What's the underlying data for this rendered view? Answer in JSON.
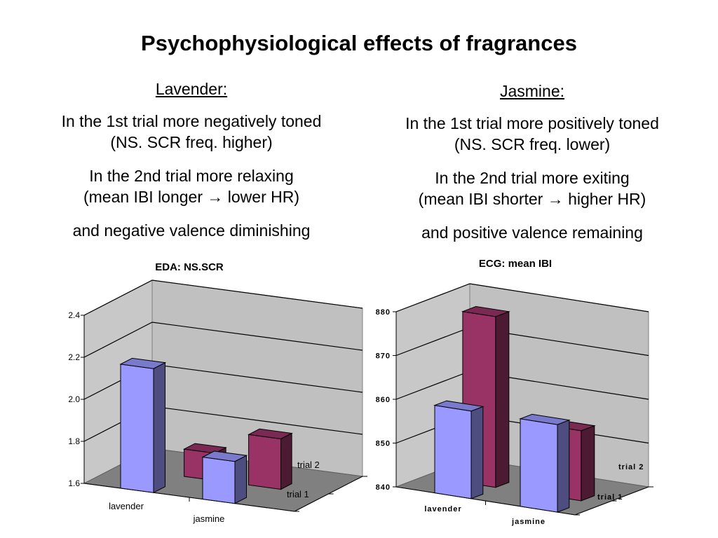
{
  "title": "Psychophysiological effects of fragrances",
  "left": {
    "heading": "Lavender:",
    "line1a": "In the 1st trial more negatively toned",
    "line1b": "(NS. SCR freq. higher)",
    "line2a": "In the 2nd trial more relaxing",
    "line2b": "(mean IBI longer → lower HR)",
    "line3": "and negative valence diminishing"
  },
  "right": {
    "heading": "Jasmine:",
    "line1a": "In the 1st trial more positively toned",
    "line1b": "(NS. SCR freq. lower)",
    "line2a": "In the 2nd trial more exiting",
    "line2b": "(mean IBI shorter → higher HR)",
    "line3": "and positive valence remaining"
  },
  "chart_data": [
    {
      "type": "bar",
      "title": "EDA: NS.SCR",
      "categories": [
        "lavender",
        "jasmine"
      ],
      "series": [
        {
          "name": "trial 1",
          "values": [
            2.19,
            1.8
          ],
          "color": "#9999ff"
        },
        {
          "name": "trial 2",
          "values": [
            1.73,
            1.84
          ],
          "color": "#993366"
        }
      ],
      "yticks": [
        "1.6",
        "1.8",
        "2.0",
        "2.2",
        "2.4"
      ],
      "ylim": [
        1.6,
        2.4
      ],
      "grid": true
    },
    {
      "type": "bar",
      "title": "ECG: mean IBI",
      "categories": [
        "lavender",
        "jasmine"
      ],
      "series": [
        {
          "name": "trial 1",
          "values": [
            860,
            860
          ],
          "color": "#9999ff"
        },
        {
          "name": "trial 2",
          "values": [
            879,
            856
          ],
          "color": "#993366"
        }
      ],
      "yticks": [
        "840",
        "850",
        "860",
        "870",
        "880"
      ],
      "ylim": [
        840,
        880
      ],
      "grid": true
    }
  ]
}
